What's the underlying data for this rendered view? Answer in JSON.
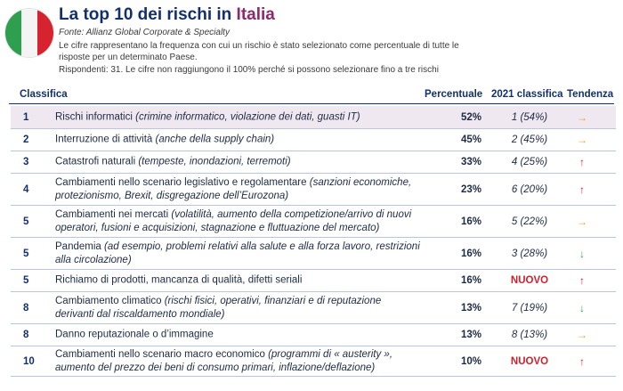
{
  "header": {
    "title_prefix": "La top 10 dei rischi in ",
    "title_country": "Italia",
    "source": "Fonte: Allianz Global Corporate & Specialty",
    "description": "Le cifre rappresentano la frequenza con cui un rischio è stato selezionato come percentuale di tutte le risposte per un determinato Paese.",
    "respondents": "Rispondenti: 31. Le cifre non raggiungono il 100% perché si possono selezionare fino a tre rischi"
  },
  "flag": {
    "colors": [
      "#2e9e4f",
      "#f4f4f4",
      "#d7232f"
    ]
  },
  "columns": {
    "rank": "Classifica",
    "percent": "Percentuale",
    "classifica_2021": "2021 classifica",
    "trend": "Tendenza"
  },
  "colors": {
    "up": "#d0202e",
    "down": "#2e9e4f",
    "same": "#f0a020",
    "new": "#d0202e"
  },
  "rows": [
    {
      "rank": "1",
      "risk": "Rischi informatici",
      "detail": "(crimine informatico, violazione dei dati, guasti IT)",
      "pct": "52%",
      "c2021": "1 (54%)",
      "is_new": false,
      "trend": "same",
      "trend_symbol": "→"
    },
    {
      "rank": "2",
      "risk": "Interruzione di attività",
      "detail": "(anche della supply chain)",
      "pct": "45%",
      "c2021": "2 (45%)",
      "is_new": false,
      "trend": "same",
      "trend_symbol": "→"
    },
    {
      "rank": "3",
      "risk": "Catastrofi naturali",
      "detail": "(tempeste, inondazioni, terremoti)",
      "pct": "33%",
      "c2021": "4 (25%)",
      "is_new": false,
      "trend": "up",
      "trend_symbol": "↑"
    },
    {
      "rank": "4",
      "risk": "Cambiamenti nello scenario legislativo e regolamentare",
      "detail": "(sanzioni economiche, protezionismo, Brexit, disgregazione dell’Eurozona)",
      "pct": "23%",
      "c2021": "6 (20%)",
      "is_new": false,
      "trend": "up",
      "trend_symbol": "↑"
    },
    {
      "rank": "5",
      "risk": "Cambiamenti nei mercati",
      "detail": "(volatilità, aumento della competizione/arrivo di nuovi operatori, fusioni e acquisizioni, stagnazione e fluttuazione del mercato)",
      "pct": "16%",
      "c2021": "5 (22%)",
      "is_new": false,
      "trend": "same",
      "trend_symbol": "→"
    },
    {
      "rank": "5",
      "risk": "Pandemia",
      "detail": "(ad esempio, problemi relativi alla salute e alla forza lavoro, restrizioni alla circolazione)",
      "pct": "16%",
      "c2021": "3 (28%)",
      "is_new": false,
      "trend": "down",
      "trend_symbol": "↓"
    },
    {
      "rank": "5",
      "risk": "Richiamo di prodotti, mancanza di qualità, difetti seriali",
      "detail": "",
      "pct": "16%",
      "c2021": "NUOVO",
      "is_new": true,
      "trend": "up",
      "trend_symbol": "↑"
    },
    {
      "rank": "8",
      "risk": "Cambiamento climatico",
      "detail": "(rischi fisici, operativi, finanziari e di reputazione derivanti dal riscaldamento mondiale)",
      "pct": "13%",
      "c2021": "7 (19%)",
      "is_new": false,
      "trend": "down",
      "trend_symbol": "↓"
    },
    {
      "rank": "8",
      "risk": "Danno reputazionale o d’immagine",
      "detail": "",
      "pct": "13%",
      "c2021": "8 (13%)",
      "is_new": false,
      "trend": "same",
      "trend_symbol": "→"
    },
    {
      "rank": "10",
      "risk": "Cambiamenti nello scenario macro economico",
      "detail": "(programmi di « austerity », aumento del prezzo dei beni di consumo primari, inflazione/deflazione)",
      "pct": "10%",
      "c2021": "NUOVO",
      "is_new": true,
      "trend": "up",
      "trend_symbol": "↑"
    }
  ]
}
